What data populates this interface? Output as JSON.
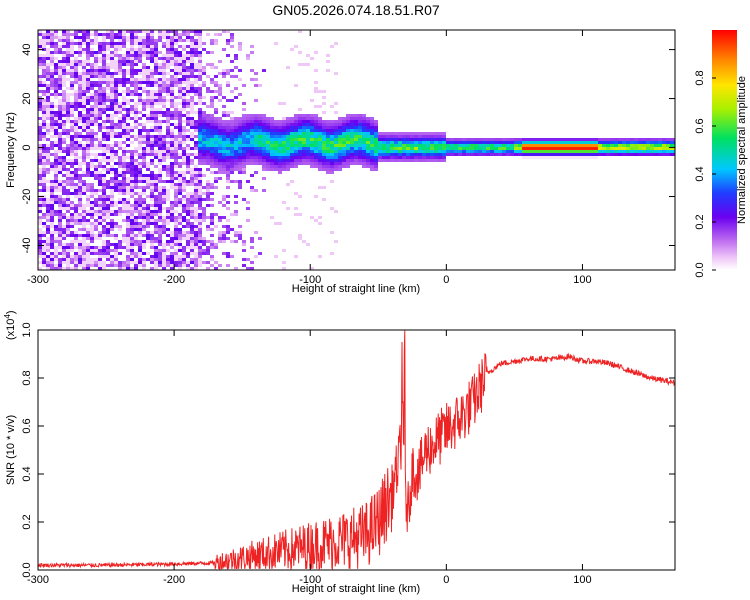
{
  "title": "GN05.2026.074.18.51.R07",
  "chart_data": [
    {
      "type": "heatmap",
      "xlabel": "Height of straight line (km)",
      "ylabel": "Frequency (Hz)",
      "xlim": [
        -300,
        168
      ],
      "ylim": [
        -50,
        48
      ],
      "xticks": [
        -300,
        -200,
        -100,
        0,
        100
      ],
      "yticks": [
        -40,
        -20,
        0,
        20,
        40
      ],
      "xtick_labels": [
        "-300",
        "-200",
        "-100",
        "0",
        "100"
      ],
      "ytick_labels": [
        "-40",
        "-20",
        "0",
        "20",
        "40"
      ],
      "colorbar": {
        "label": "Normalized spectral amplitude",
        "range": [
          0,
          1
        ],
        "ticks": [
          0.0,
          0.2,
          0.4,
          0.6,
          0.8
        ],
        "tick_labels": [
          "0.0",
          "0.2",
          "0.4",
          "0.6",
          "0.8"
        ],
        "colormap": "rainbow (white-magenta-purple-blue-cyan-green-yellow-orange-red)"
      },
      "features": {
        "noise_region_x": [
          -300,
          -180
        ],
        "noise_fade_x": [
          -180,
          -130
        ],
        "signal_band_x": [
          -180,
          168
        ],
        "signal_freq_center": 0,
        "peak_amplitude_near_x": [
          60,
          110
        ]
      }
    },
    {
      "type": "line",
      "xlabel": "Height of straight line (km)",
      "ylabel": "SNR (10 * v/v)",
      "multiplier_label": "(x10",
      "multiplier_exp": "4",
      "multiplier_close": ")",
      "xlim": [
        -300,
        168
      ],
      "ylim": [
        0,
        1.0
      ],
      "xticks": [
        -300,
        -200,
        -100,
        0,
        100
      ],
      "yticks": [
        0.0,
        0.2,
        0.4,
        0.6,
        0.8,
        1.0
      ],
      "xtick_labels": [
        "-300",
        "-200",
        "-100",
        "0",
        "100"
      ],
      "ytick_labels": [
        "0.0",
        "0.2",
        "0.4",
        "0.6",
        "0.8",
        "1.0"
      ],
      "series": [
        {
          "color": "#ee2222",
          "x": [
            -300,
            -250,
            -200,
            -170,
            -150,
            -130,
            -110,
            -90,
            -70,
            -60,
            -50,
            -40,
            -35,
            -32,
            -30,
            -28,
            -25,
            -20,
            -15,
            -10,
            0,
            10,
            20,
            30,
            40,
            50,
            60,
            70,
            80,
            90,
            100,
            110,
            120,
            130,
            140,
            150,
            168
          ],
          "y": [
            0.02,
            0.02,
            0.025,
            0.03,
            0.05,
            0.07,
            0.09,
            0.11,
            0.13,
            0.14,
            0.2,
            0.32,
            0.45,
            0.6,
            0.3,
            0.25,
            0.42,
            0.4,
            0.5,
            0.52,
            0.58,
            0.63,
            0.7,
            0.82,
            0.86,
            0.87,
            0.88,
            0.88,
            0.88,
            0.89,
            0.87,
            0.87,
            0.86,
            0.84,
            0.82,
            0.8,
            0.78
          ]
        }
      ]
    }
  ]
}
